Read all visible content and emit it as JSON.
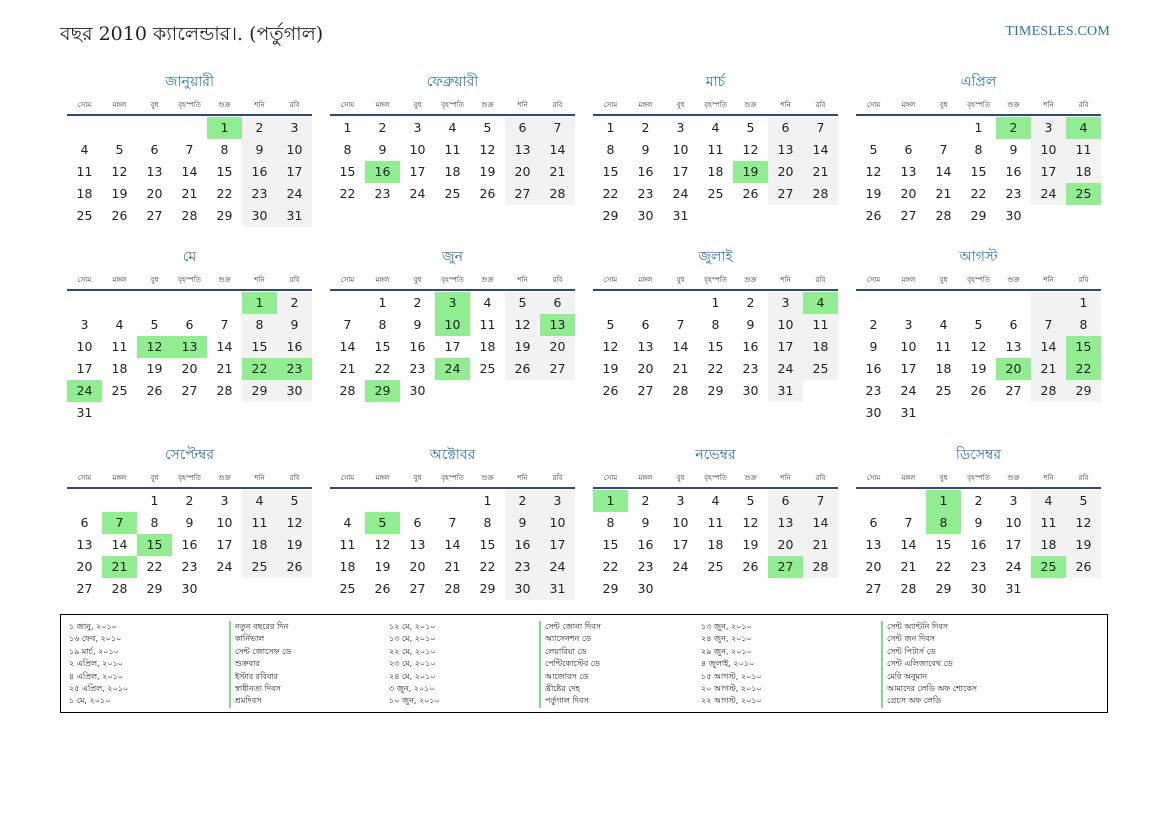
{
  "header": {
    "title": "বছর 2010 ক্যালেন্ডার।. (পর্তুগাল)",
    "site": "TIMESLES.COM"
  },
  "weekdays": [
    "সোম",
    "মঙ্গল",
    "বুধ",
    "বৃহস্পতি",
    "শুক্র",
    "শনি",
    "রবি"
  ],
  "colors": {
    "accent": "#2a72b5",
    "holiday": "#90ee90",
    "weekend": "#f2f2f2",
    "rule": "#2f4a7a"
  },
  "months": [
    {
      "name": "জানুয়ারী",
      "offset": 4,
      "days": 31,
      "holidays": [
        1
      ]
    },
    {
      "name": "ফেব্রুয়ারী",
      "offset": 0,
      "days": 28,
      "holidays": [
        16
      ]
    },
    {
      "name": "মার্চ",
      "offset": 0,
      "days": 31,
      "holidays": [
        19
      ]
    },
    {
      "name": "এপ্রিল",
      "offset": 3,
      "days": 30,
      "holidays": [
        2,
        4,
        25
      ]
    },
    {
      "name": "মে",
      "offset": 5,
      "days": 31,
      "holidays": [
        1,
        12,
        13,
        22,
        23,
        24
      ]
    },
    {
      "name": "জুন",
      "offset": 1,
      "days": 30,
      "holidays": [
        3,
        10,
        13,
        24,
        29
      ]
    },
    {
      "name": "জুলাই",
      "offset": 3,
      "days": 31,
      "holidays": [
        4
      ]
    },
    {
      "name": "আগস্ট",
      "offset": 6,
      "days": 31,
      "holidays": [
        15,
        20,
        22
      ]
    },
    {
      "name": "সেপ্টেম্বর",
      "offset": 2,
      "days": 30,
      "holidays": [
        7,
        15,
        21
      ]
    },
    {
      "name": "অক্টোবর",
      "offset": 4,
      "days": 31,
      "holidays": [
        5
      ]
    },
    {
      "name": "নভেম্বর",
      "offset": 0,
      "days": 30,
      "holidays": [
        1,
        27
      ]
    },
    {
      "name": "ডিসেম্বর",
      "offset": 2,
      "days": 31,
      "holidays": [
        1,
        8,
        25
      ]
    }
  ],
  "legend": {
    "col1_dates": [
      "১ জানু, ২০১০",
      "১৬ ফেব, ২০১০",
      "১৯ মার্চ, ২০১০",
      "২ এপ্রিল, ২০১০",
      "৪ এপ্রিল, ২০১০",
      "২৫ এপ্রিল, ২০১০",
      "১ মে, ২০১০"
    ],
    "col1_names": [
      "নতুন বছরের দিন",
      "কার্নিভাল",
      "সেন্ট জোসেফ ডে",
      "শুক্রবার",
      "ইস্টার রবিবার",
      "স্বাধীনতা দিবস",
      "শ্রমদিবস"
    ],
    "col2_dates": [
      "১২ মে, ২০১০",
      "১৩ মে, ২০১০",
      "২২ মে, ২০১০",
      "২৩ মে, ২০১০",
      "২৪ মে, ২০১০",
      "৩ জুন, ২০১০",
      "১০ জুন, ২০১০"
    ],
    "col2_names": [
      "সেন্ট জোনা দিবস",
      "অ্যাসেনশন ডে",
      "লেয়ারিয়া ডে",
      "পেন্টিকোস্টের ডে",
      "আজোরস ডে",
      "খ্রীষ্টের দেহ",
      "পর্তুগাল দিবস"
    ],
    "col3_dates": [
      "১৩ জুন, ২০১০",
      "২৪ জুন, ২০১০",
      "২৯ জুন, ২০১০",
      "৪ জুলাই, ২০১০",
      "১৫ আগস্ট, ২০১০",
      "২০ আগস্ট, ২০১০",
      "২২ আগস্ট, ২০১০"
    ],
    "col3_names": [
      "সেন্ট অ্যান্টনি দিবস",
      "সেন্ট জন দিবস",
      "সেন্ট পিটার্স ডে",
      "সেন্ট এলিজাবেথ ডে",
      "মেরি অনুমান",
      "আমাদের লেডি অফ শোকেস",
      "গ্রেচস অফ লেডি"
    ]
  }
}
